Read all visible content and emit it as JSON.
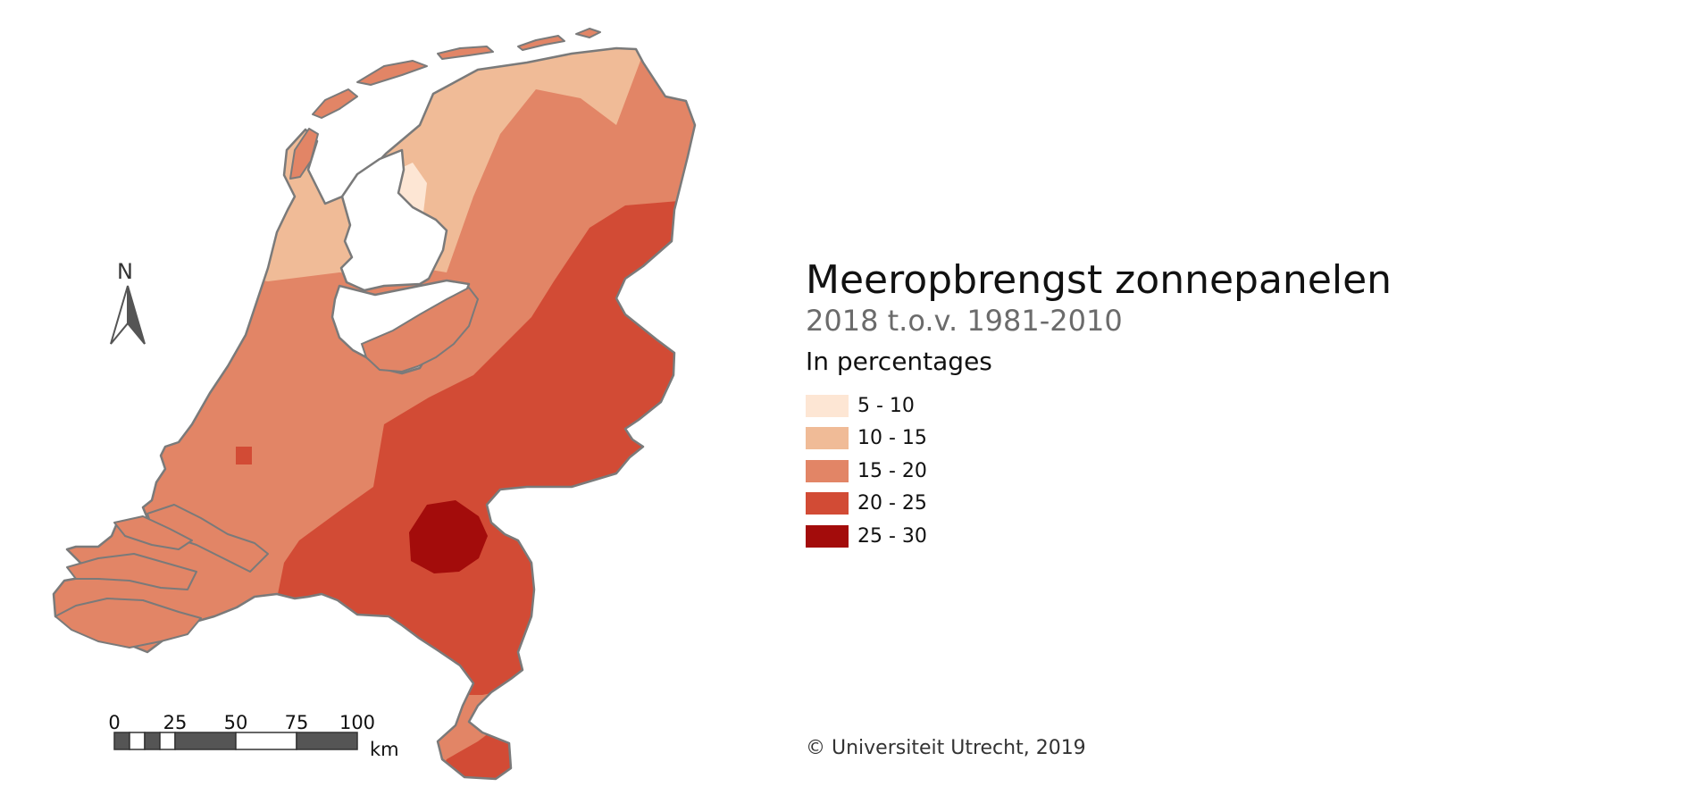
{
  "title": "Meeropbrengst zonnepanelen",
  "subtitle": "2018 t.o.v. 1981-2010",
  "unit_label": "In percentages",
  "legend": [
    {
      "label": "5 - 10",
      "color": "#fde6d4"
    },
    {
      "label": "10 - 15",
      "color": "#f0bb97"
    },
    {
      "label": "15 - 20",
      "color": "#e28566"
    },
    {
      "label": "20 - 25",
      "color": "#d24b35"
    },
    {
      "label": "25 - 30",
      "color": "#a30c0b"
    }
  ],
  "map": {
    "north_label": "N",
    "scale_bar": {
      "labels": [
        "0",
        "25",
        "50",
        "75",
        "100"
      ],
      "unit": "km"
    },
    "outline_color": "#7a7a7a",
    "water_color": "#ffffff"
  },
  "copyright": "© Universiteit Utrecht, 2019"
}
